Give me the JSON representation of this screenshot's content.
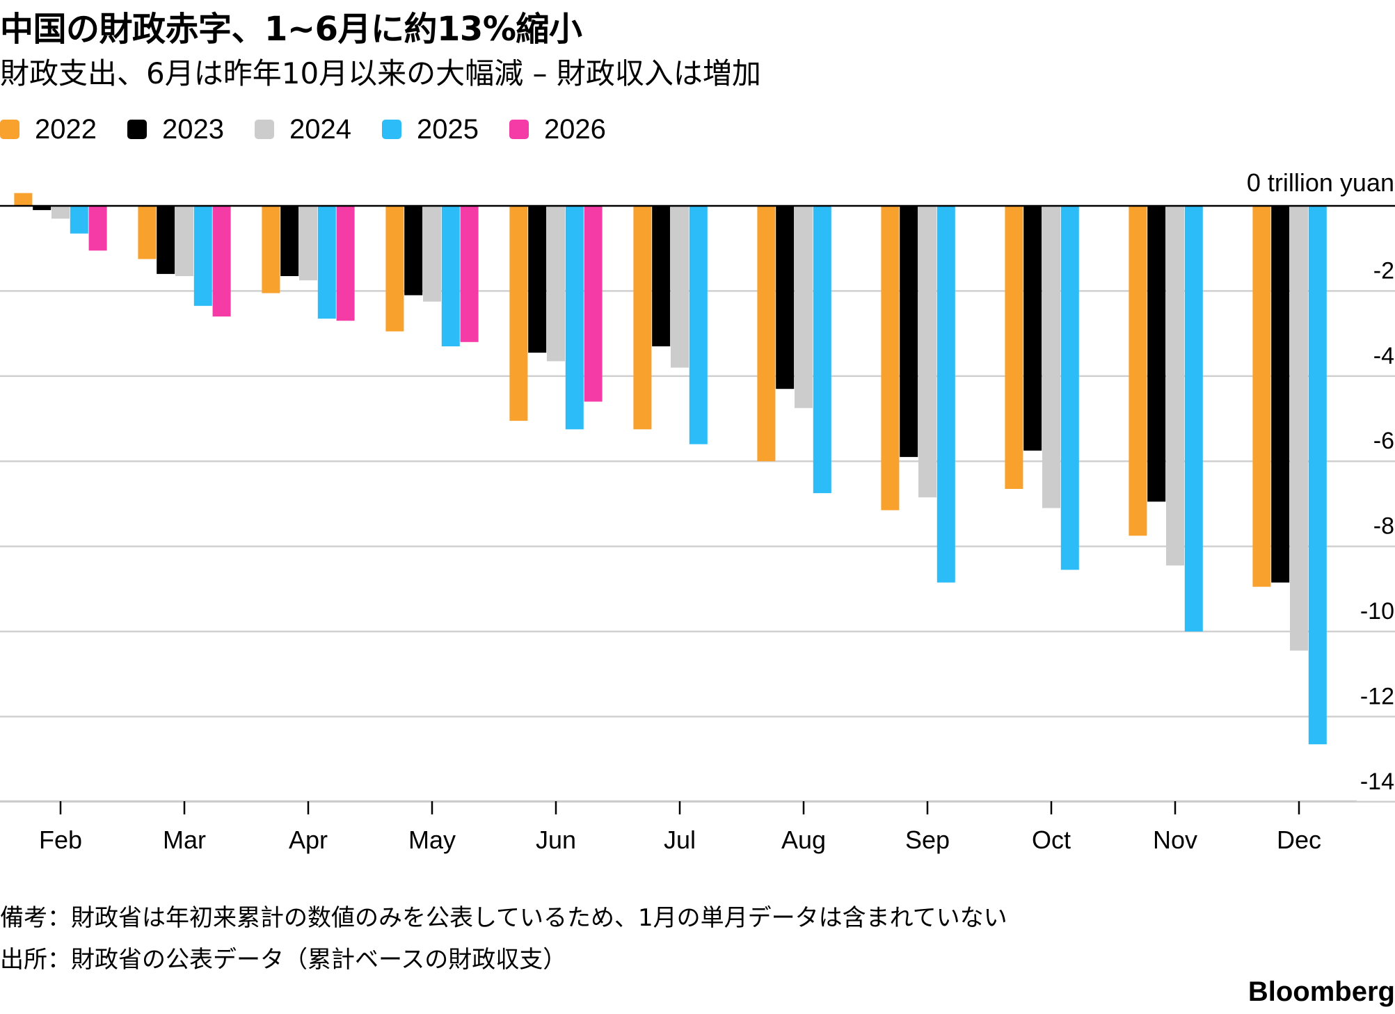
{
  "title": "中国の財政赤字、1~6月に約13%縮小",
  "subtitle": "財政支出、6月は昨年10月以来の大幅減 – 財政収入は増加",
  "notes": {
    "remark": "備考：財政省は年初来累計の数値のみを公表しているため、1月の単月データは含まれていない",
    "source": "出所：財政省の公表データ（累計ベースの財政収支）"
  },
  "brand": "Bloomberg",
  "colors": {
    "2022": "#f9a12d",
    "2023": "#000000",
    "2024": "#cccccc",
    "2025": "#2cbcf7",
    "2026": "#f43ba6"
  },
  "chart_data": {
    "type": "bar",
    "categories": [
      "Feb",
      "Mar",
      "Apr",
      "May",
      "Jun",
      "Jul",
      "Aug",
      "Sep",
      "Oct",
      "Nov",
      "Dec"
    ],
    "series": [
      {
        "name": "2022",
        "color": "#f9a12d",
        "values": [
          0.3,
          -1.25,
          -2.05,
          -2.95,
          -5.05,
          -5.25,
          -6.0,
          -7.15,
          -6.65,
          -7.75,
          -8.95
        ]
      },
      {
        "name": "2023",
        "color": "#000000",
        "values": [
          -0.1,
          -1.6,
          -1.65,
          -2.1,
          -3.45,
          -3.3,
          -4.3,
          -5.9,
          -5.75,
          -6.95,
          -8.85
        ]
      },
      {
        "name": "2024",
        "color": "#cccccc",
        "values": [
          -0.3,
          -1.65,
          -1.75,
          -2.25,
          -3.65,
          -3.8,
          -4.75,
          -6.85,
          -7.1,
          -8.45,
          -10.45
        ]
      },
      {
        "name": "2025",
        "color": "#2cbcf7",
        "values": [
          -0.65,
          -2.35,
          -2.65,
          -3.3,
          -5.25,
          -5.6,
          -6.75,
          -8.85,
          -8.55,
          -10.0,
          -12.65
        ]
      },
      {
        "name": "2026",
        "color": "#f43ba6",
        "values": [
          -1.05,
          -2.6,
          -2.7,
          -3.2,
          -4.6,
          null,
          null,
          null,
          null,
          null,
          null
        ]
      }
    ],
    "y_ticks": [
      0,
      -2,
      -4,
      -6,
      -8,
      -10,
      -12,
      -14
    ],
    "y_tick_labels": [
      "0 trillion yuan",
      "-2",
      "-4",
      "-6",
      "-8",
      "-10",
      "-12",
      "-14"
    ],
    "ylim": [
      -14,
      0.4
    ],
    "grid": true,
    "legend_position": "top-left"
  }
}
